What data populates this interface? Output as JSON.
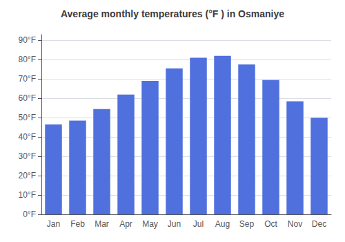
{
  "chart_data": {
    "type": "bar",
    "title": "Average monthly temperatures (°F ) in Osmaniye",
    "categories": [
      "Jan",
      "Feb",
      "Mar",
      "Apr",
      "May",
      "Jun",
      "Jul",
      "Aug",
      "Sep",
      "Oct",
      "Nov",
      "Dec"
    ],
    "values": [
      46.5,
      48.5,
      54.5,
      62,
      69,
      75.5,
      81,
      82,
      77.5,
      69.5,
      58.5,
      50
    ],
    "ylim": [
      0,
      93
    ],
    "yticks": [
      {
        "value": 0,
        "label": "0°F"
      },
      {
        "value": 10,
        "label": "10°F"
      },
      {
        "value": 20,
        "label": "20°F"
      },
      {
        "value": 30,
        "label": "30°F"
      },
      {
        "value": 40,
        "label": "40°F"
      },
      {
        "value": 50,
        "label": "50°F"
      },
      {
        "value": 60,
        "label": "60°F"
      },
      {
        "value": 70,
        "label": "70°F"
      },
      {
        "value": 80,
        "label": "80°F"
      },
      {
        "value": 90,
        "label": "90°F"
      }
    ],
    "grid": true
  }
}
